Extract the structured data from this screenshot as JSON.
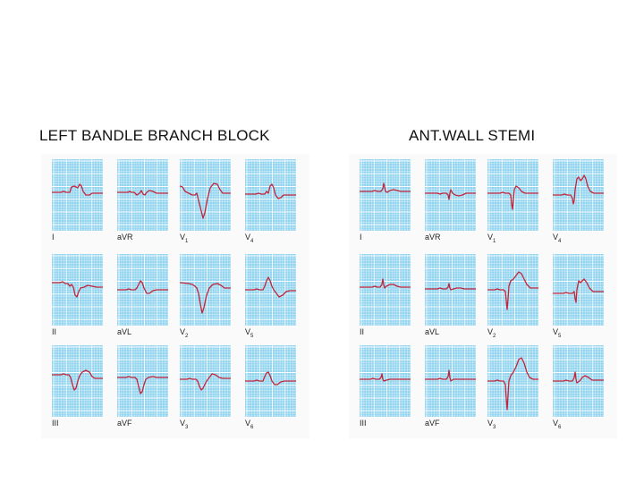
{
  "titles": {
    "left": "LEFT BANDLE BRANCH BLOCK",
    "right": "ANT.WALL STEMI"
  },
  "colors": {
    "grid_background": "#8fd3ef",
    "grid_line": "#ffffff",
    "trace": "#c2253a",
    "label": "#222222"
  },
  "panels": [
    {
      "id": "lbbb",
      "leads": [
        {
          "label": "I",
          "wave": "lbbb_I"
        },
        {
          "label": "aVR",
          "wave": "lbbb_aVR"
        },
        {
          "label": "V1",
          "wave": "lbbb_V1"
        },
        {
          "label": "V4",
          "wave": "lbbb_V4"
        },
        {
          "label": "II",
          "wave": "lbbb_II"
        },
        {
          "label": "aVL",
          "wave": "lbbb_aVL"
        },
        {
          "label": "V2",
          "wave": "lbbb_V2"
        },
        {
          "label": "V5",
          "wave": "lbbb_V5"
        },
        {
          "label": "III",
          "wave": "lbbb_III"
        },
        {
          "label": "aVF",
          "wave": "lbbb_aVF"
        },
        {
          "label": "V3",
          "wave": "lbbb_V3"
        },
        {
          "label": "V6",
          "wave": "lbbb_V6"
        }
      ]
    },
    {
      "id": "stemi",
      "leads": [
        {
          "label": "I",
          "wave": "stemi_I"
        },
        {
          "label": "aVR",
          "wave": "stemi_aVR"
        },
        {
          "label": "V1",
          "wave": "stemi_V1"
        },
        {
          "label": "V4",
          "wave": "stemi_V4"
        },
        {
          "label": "II",
          "wave": "stemi_II"
        },
        {
          "label": "aVL",
          "wave": "stemi_aVL"
        },
        {
          "label": "V2",
          "wave": "stemi_V2"
        },
        {
          "label": "V5",
          "wave": "stemi_V5"
        },
        {
          "label": "III",
          "wave": "stemi_III"
        },
        {
          "label": "aVF",
          "wave": "stemi_aVF"
        },
        {
          "label": "V3",
          "wave": "stemi_V3"
        },
        {
          "label": "V6",
          "wave": "stemi_V6"
        }
      ]
    }
  ]
}
